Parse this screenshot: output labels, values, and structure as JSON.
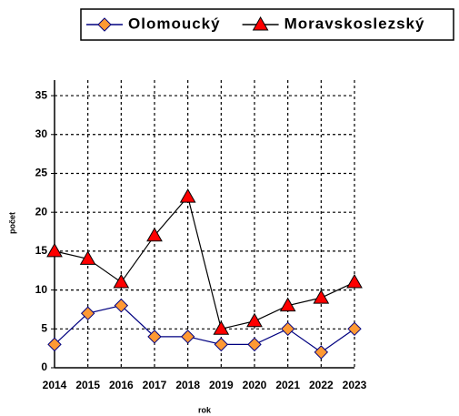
{
  "chart_data": {
    "type": "line",
    "categories": [
      "2014",
      "2015",
      "2016",
      "2017",
      "2018",
      "2019",
      "2020",
      "2021",
      "2022",
      "2023"
    ],
    "series": [
      {
        "name": "Olomoucký",
        "color": "#000080",
        "marker_color": "#ff9933",
        "marker": "diamond",
        "values": [
          3,
          7,
          8,
          4,
          4,
          3,
          3,
          5,
          2,
          5
        ]
      },
      {
        "name": "Moravskoslezský",
        "color": "#000000",
        "marker_color": "#ff0000",
        "marker": "triangle",
        "values": [
          15,
          14,
          11,
          17,
          22,
          5,
          6,
          8,
          9,
          11
        ]
      }
    ],
    "xlabel": "rok",
    "ylabel": "počet",
    "ylim": [
      0,
      37
    ],
    "yticks": [
      0,
      5,
      10,
      15,
      20,
      25,
      30,
      35
    ],
    "grid": true,
    "legend": "top"
  }
}
